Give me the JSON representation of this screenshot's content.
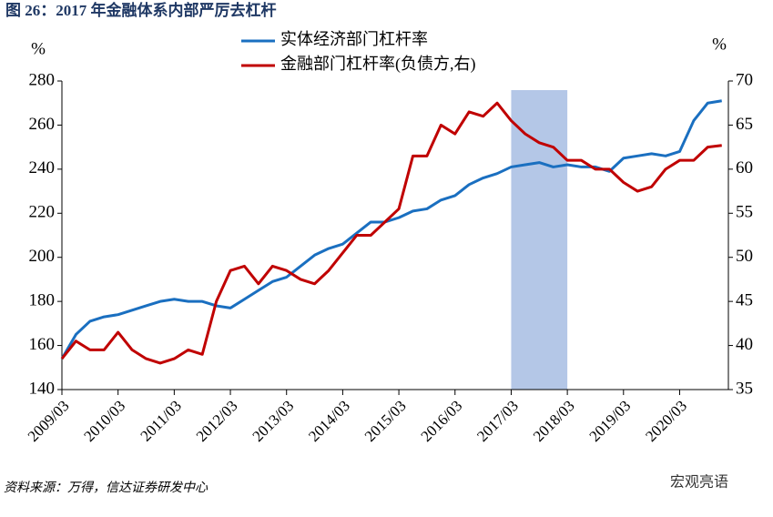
{
  "chart_data": {
    "type": "line",
    "title": "图 26：2017 年金融体系内部严厉去杠杆",
    "y_unit": "%",
    "y2_unit": "%",
    "source": "资料来源：万得，信达证券研发中心",
    "watermark": "宏观亮语",
    "categories": [
      "2009/03",
      null,
      null,
      null,
      "2010/03",
      null,
      null,
      null,
      "2011/03",
      null,
      null,
      null,
      "2012/03",
      null,
      null,
      null,
      "2013/03",
      null,
      null,
      null,
      "2014/03",
      null,
      null,
      null,
      "2015/03",
      null,
      null,
      null,
      "2016/03",
      null,
      null,
      null,
      "2017/03",
      null,
      null,
      null,
      "2018/03",
      null,
      null,
      null,
      "2019/03",
      null,
      null,
      null,
      "2020/03",
      null,
      null,
      null
    ],
    "highlight": [
      "2017/03",
      "2018/03"
    ],
    "highlight_color": "#b4c7e7",
    "series": [
      {
        "name": "实体经济部门杠杆率",
        "color": "#1a6fc0",
        "values": [
          154,
          165,
          171,
          173,
          174,
          176,
          178,
          180,
          181,
          180,
          180,
          178,
          177,
          181,
          185,
          189,
          191,
          196,
          201,
          204,
          206,
          211,
          216,
          216,
          218,
          221,
          222,
          226,
          228,
          233,
          236,
          238,
          241,
          242,
          243,
          241,
          242,
          241,
          241,
          239,
          245,
          246,
          247,
          246,
          248,
          262,
          270,
          271
        ]
      },
      {
        "name": "金融部门杠杆率(负债方,右)",
        "color": "#c00000",
        "axis": "y2",
        "values": [
          38.5,
          40.5,
          39.5,
          39.5,
          41.5,
          39.5,
          38.5,
          38,
          38.5,
          39.5,
          39,
          45,
          48.5,
          49,
          47,
          49,
          48.5,
          47.5,
          47,
          48.5,
          50.5,
          52.5,
          52.5,
          54,
          55.5,
          61.5,
          61.5,
          65,
          64,
          66.5,
          66,
          67.5,
          65.5,
          64,
          63,
          62.5,
          61,
          61,
          60,
          60,
          58.5,
          57.5,
          58,
          60,
          61,
          61,
          62.5,
          62.7
        ]
      }
    ],
    "ylim": [
      140,
      280
    ],
    "yticks": [
      140,
      160,
      180,
      200,
      220,
      240,
      260,
      280
    ],
    "y2lim": [
      35,
      70
    ],
    "y2ticks": [
      35,
      40,
      45,
      50,
      55,
      60,
      65,
      70
    ]
  }
}
